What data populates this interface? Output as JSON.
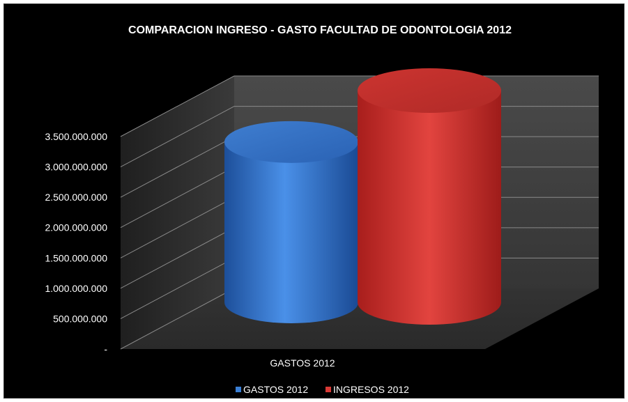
{
  "chart_data": {
    "type": "bar",
    "title": "COMPARACION INGRESO - GASTO FACULTAD DE ODONTOLOGIA 2012",
    "categories": [
      "GASTOS 2012"
    ],
    "series": [
      {
        "name": "GASTOS 2012",
        "values": [
          2650000000
        ],
        "color": "#3a7fd5"
      },
      {
        "name": "INGRESOS 2012",
        "values": [
          3500000000
        ],
        "color": "#d93a36"
      }
    ],
    "ylim": [
      0,
      3500000000
    ],
    "ytick_values": [
      0,
      500000000,
      1000000000,
      1500000000,
      2000000000,
      2500000000,
      3000000000,
      3500000000
    ],
    "ytick_labels": [
      "-",
      "500.000.000",
      "1.000.000.000",
      "1.500.000.000",
      "2.000.000.000",
      "2.500.000.000",
      "3.000.000.000",
      "3.500.000.000"
    ],
    "grid": true,
    "legend_position": "bottom",
    "style": "3d-cylinder"
  }
}
